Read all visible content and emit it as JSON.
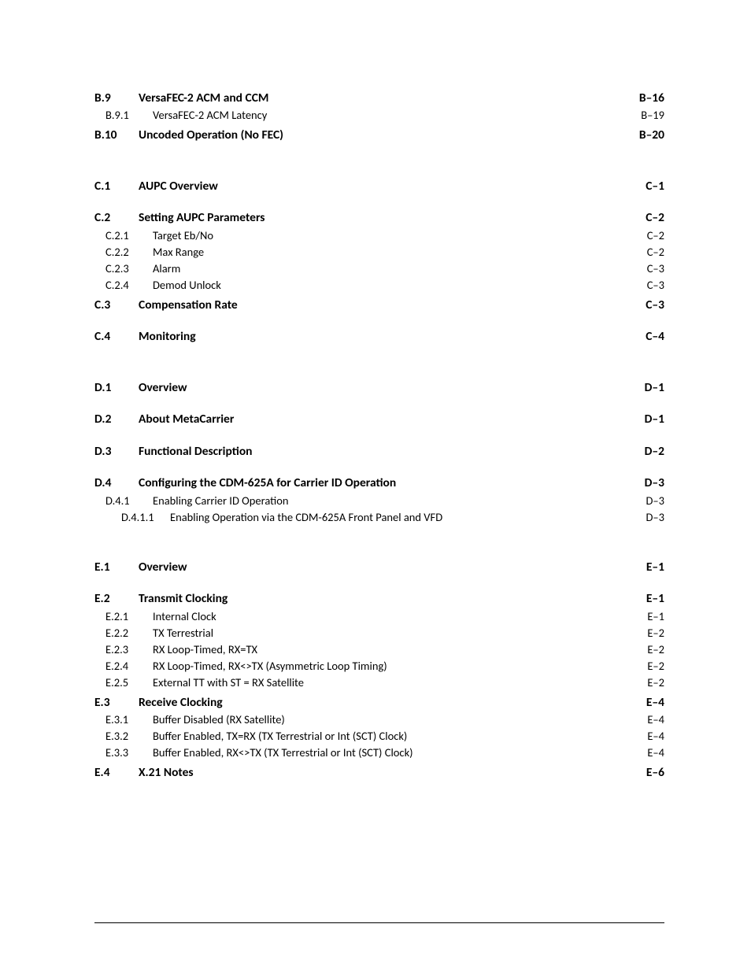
{
  "sections": [
    {
      "entries": [
        {
          "level": 0,
          "num": "B.9",
          "title": "VersaFEC-2 ACM and CCM",
          "page": "B–16",
          "gapBefore": false
        },
        {
          "level": 1,
          "num": "B.9.1",
          "title": "VersaFEC-2 ACM Latency",
          "page": "B–19",
          "gapBefore": false
        },
        {
          "level": 0,
          "num": "B.10",
          "title": "Uncoded Operation (No FEC)",
          "page": "B–20",
          "gapBefore": true
        }
      ]
    },
    {
      "entries": [
        {
          "level": 0,
          "num": "C.1",
          "title": "AUPC Overview",
          "page": "C–1",
          "gapBefore": false
        },
        {
          "level": 0,
          "num": "C.2",
          "title": "Setting AUPC Parameters",
          "page": "C–2",
          "gapBefore": true
        },
        {
          "level": 1,
          "num": "C.2.1",
          "title": "Target Eb/No",
          "page": "C–2",
          "gapBefore": false
        },
        {
          "level": 1,
          "num": "C.2.2",
          "title": "Max Range",
          "page": "C–2",
          "gapBefore": false
        },
        {
          "level": 1,
          "num": "C.2.3",
          "title": "Alarm",
          "page": "C–3",
          "gapBefore": false
        },
        {
          "level": 1,
          "num": "C.2.4",
          "title": "Demod Unlock",
          "page": "C–3",
          "gapBefore": false
        },
        {
          "level": 0,
          "num": "C.3",
          "title": "Compensation Rate",
          "page": "C–3",
          "gapBefore": true
        },
        {
          "level": 0,
          "num": "C.4",
          "title": "Monitoring",
          "page": "C–4",
          "gapBefore": true
        }
      ]
    },
    {
      "entries": [
        {
          "level": 0,
          "num": "D.1",
          "title": "Overview",
          "page": "D–1",
          "gapBefore": false
        },
        {
          "level": 0,
          "num": "D.2",
          "title": "About MetaCarrier",
          "page": "D–1",
          "gapBefore": true
        },
        {
          "level": 0,
          "num": "D.3",
          "title": "Functional Description",
          "page": "D–2",
          "gapBefore": true
        },
        {
          "level": 0,
          "num": "D.4",
          "title": "Configuring the CDM-625A for Carrier ID Operation",
          "page": "D–3",
          "gapBefore": true
        },
        {
          "level": 1,
          "num": "D.4.1",
          "title": "Enabling Carrier ID Operation",
          "page": "D–3",
          "gapBefore": false
        },
        {
          "level": 2,
          "num": "D.4.1.1",
          "title": "Enabling Operation via the CDM-625A Front Panel and VFD",
          "page": "D–3",
          "gapBefore": false
        }
      ]
    },
    {
      "entries": [
        {
          "level": 0,
          "num": "E.1",
          "title": "Overview",
          "page": "E–1",
          "gapBefore": false
        },
        {
          "level": 0,
          "num": "E.2",
          "title": "Transmit Clocking",
          "page": "E–1",
          "gapBefore": true
        },
        {
          "level": 1,
          "num": "E.2.1",
          "title": "Internal Clock",
          "page": "E–1",
          "gapBefore": false
        },
        {
          "level": 1,
          "num": "E.2.2",
          "title": "TX Terrestrial",
          "page": "E–2",
          "gapBefore": false
        },
        {
          "level": 1,
          "num": "E.2.3",
          "title": "RX Loop-Timed, RX=TX",
          "page": "E–2",
          "gapBefore": false
        },
        {
          "level": 1,
          "num": "E.2.4",
          "title": "RX Loop-Timed, RX<>TX (Asymmetric Loop Timing)",
          "page": "E–2",
          "gapBefore": false
        },
        {
          "level": 1,
          "num": "E.2.5",
          "title": "External TT with ST = RX Satellite",
          "page": "E–2",
          "gapBefore": false
        },
        {
          "level": 0,
          "num": "E.3",
          "title": "Receive Clocking",
          "page": "E–4",
          "gapBefore": true
        },
        {
          "level": 1,
          "num": "E.3.1",
          "title": "Buffer Disabled (RX Satellite)",
          "page": "E–4",
          "gapBefore": false
        },
        {
          "level": 1,
          "num": "E.3.2",
          "title": "Buffer Enabled, TX=RX (TX Terrestrial or Int (SCT) Clock)",
          "page": "E–4",
          "gapBefore": false
        },
        {
          "level": 1,
          "num": "E.3.3",
          "title": "Buffer Enabled, RX<>TX (TX Terrestrial or Int (SCT) Clock)",
          "page": "E–4",
          "gapBefore": false
        },
        {
          "level": 0,
          "num": "E.4",
          "title": "X.21 Notes",
          "page": "E–6",
          "gapBefore": true
        }
      ]
    }
  ]
}
